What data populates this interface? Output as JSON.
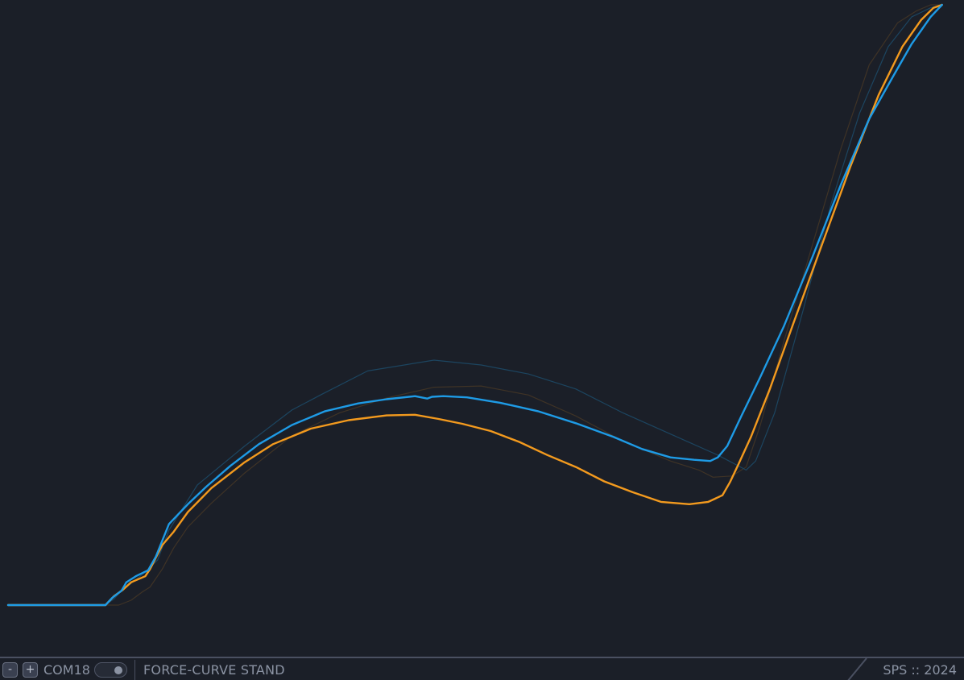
{
  "statusbar": {
    "minus_label": "-",
    "plus_label": "+",
    "port": "COM18",
    "toggle_on": true,
    "device_name": "FORCE-CURVE STAND",
    "sps_label": "SPS :: 2024"
  },
  "colors": {
    "background": "#1b1f28",
    "live_blue": "#1e9be6",
    "live_orange": "#f39a1e",
    "ghost_blue": "#1d4a66",
    "ghost_orange": "#4a3a28"
  },
  "chart_data": {
    "type": "line",
    "title": "",
    "xlabel": "",
    "ylabel": "",
    "xlim": [
      0,
      100
    ],
    "ylim": [
      0,
      100
    ],
    "grid": false,
    "series": [
      {
        "color": "#3f3326",
        "width": 1.2,
        "x": [
          0,
          11.7,
          13.0,
          14.2,
          15.0,
          16.3,
          17.5,
          19.0,
          21.5,
          25.0,
          30.0,
          35.0,
          40.0,
          45.0,
          50.0,
          55.0,
          60.0,
          65.0,
          70.0,
          73.0,
          74.5,
          76.5,
          78.0,
          79.5,
          82.0,
          85.0,
          88.0,
          91.0,
          94.0,
          96.0,
          97.5,
          98.7
        ],
        "y": [
          0,
          0,
          0.8,
          2.2,
          3.0,
          6.0,
          9.5,
          13.0,
          17.0,
          22.0,
          28.2,
          32.0,
          34.5,
          36.3,
          36.5,
          35.0,
          31.5,
          27.3,
          24.0,
          22.5,
          21.3,
          21.5,
          23.0,
          30.0,
          44.0,
          60.0,
          76.0,
          90.0,
          97.0,
          99.0,
          100.0,
          100.0
        ]
      },
      {
        "color": "#1c4560",
        "width": 1.2,
        "x": [
          0,
          10.2,
          11.2,
          12.0,
          13.0,
          14.5,
          15.8,
          17.0,
          20.0,
          25.0,
          30.0,
          33.0,
          38.0,
          45.0,
          50.0,
          55.0,
          60.0,
          65.0,
          70.0,
          75.0,
          78.0,
          79.0,
          81.0,
          84.0,
          87.0,
          90.0,
          93.0,
          95.5,
          97.5,
          98.7
        ],
        "y": [
          0,
          0,
          1.0,
          2.5,
          3.6,
          5.5,
          7.5,
          12.5,
          20.0,
          26.5,
          32.5,
          35.0,
          39.0,
          40.8,
          40.0,
          38.5,
          36.0,
          32.0,
          28.5,
          25.0,
          22.5,
          24.0,
          32.0,
          49.0,
          67.0,
          82.0,
          93.0,
          98.0,
          99.5,
          100.0
        ]
      },
      {
        "color": "#f39a1e",
        "width": 2.4,
        "x": [
          0,
          10.3,
          11.2,
          12.1,
          13.0,
          14.5,
          15.0,
          16.3,
          17.5,
          19.0,
          21.5,
          25.0,
          28.0,
          32.0,
          36.0,
          40.0,
          43.0,
          45.5,
          48.0,
          51.0,
          54.0,
          57.0,
          60.0,
          63.0,
          66.0,
          69.0,
          72.0,
          74.0,
          75.5,
          76.3,
          77.2,
          78.5,
          80.5,
          83.0,
          86.0,
          89.0,
          92.0,
          94.5,
          96.5,
          97.8,
          98.7
        ],
        "y": [
          0,
          0,
          1.5,
          2.5,
          3.8,
          4.8,
          6.0,
          10.0,
          12.2,
          15.5,
          19.5,
          23.8,
          26.8,
          29.4,
          30.8,
          31.6,
          31.7,
          31.0,
          30.2,
          29.0,
          27.2,
          25.0,
          23.0,
          20.6,
          18.8,
          17.2,
          16.8,
          17.2,
          18.3,
          20.5,
          23.5,
          28.0,
          36.0,
          47.0,
          60.0,
          73.0,
          85.0,
          93.0,
          97.5,
          99.5,
          100.0
        ]
      },
      {
        "color": "#1e9be6",
        "width": 2.4,
        "x": [
          0,
          10.3,
          11.0,
          12.0,
          12.5,
          13.5,
          14.8,
          15.6,
          17.0,
          19.0,
          21.0,
          23.5,
          26.5,
          30.0,
          33.5,
          37.0,
          40.0,
          43.0,
          44.3,
          44.8,
          46.0,
          48.5,
          52.0,
          56.0,
          60.0,
          64.0,
          67.0,
          70.0,
          72.5,
          74.2,
          75.0,
          76.0,
          77.5,
          79.5,
          82.0,
          85.0,
          88.0,
          91.0,
          93.5,
          95.5,
          97.5,
          98.7
        ],
        "y": [
          0,
          0,
          1.2,
          2.4,
          3.8,
          4.8,
          5.8,
          8.0,
          13.5,
          16.8,
          19.8,
          23.2,
          26.8,
          30.0,
          32.3,
          33.6,
          34.3,
          34.8,
          34.4,
          34.7,
          34.8,
          34.6,
          33.7,
          32.3,
          30.3,
          28.0,
          26.0,
          24.6,
          24.2,
          24.0,
          24.6,
          26.5,
          31.5,
          38.0,
          46.5,
          58.0,
          70.0,
          81.0,
          88.0,
          93.5,
          98.0,
          100.0
        ]
      }
    ]
  }
}
